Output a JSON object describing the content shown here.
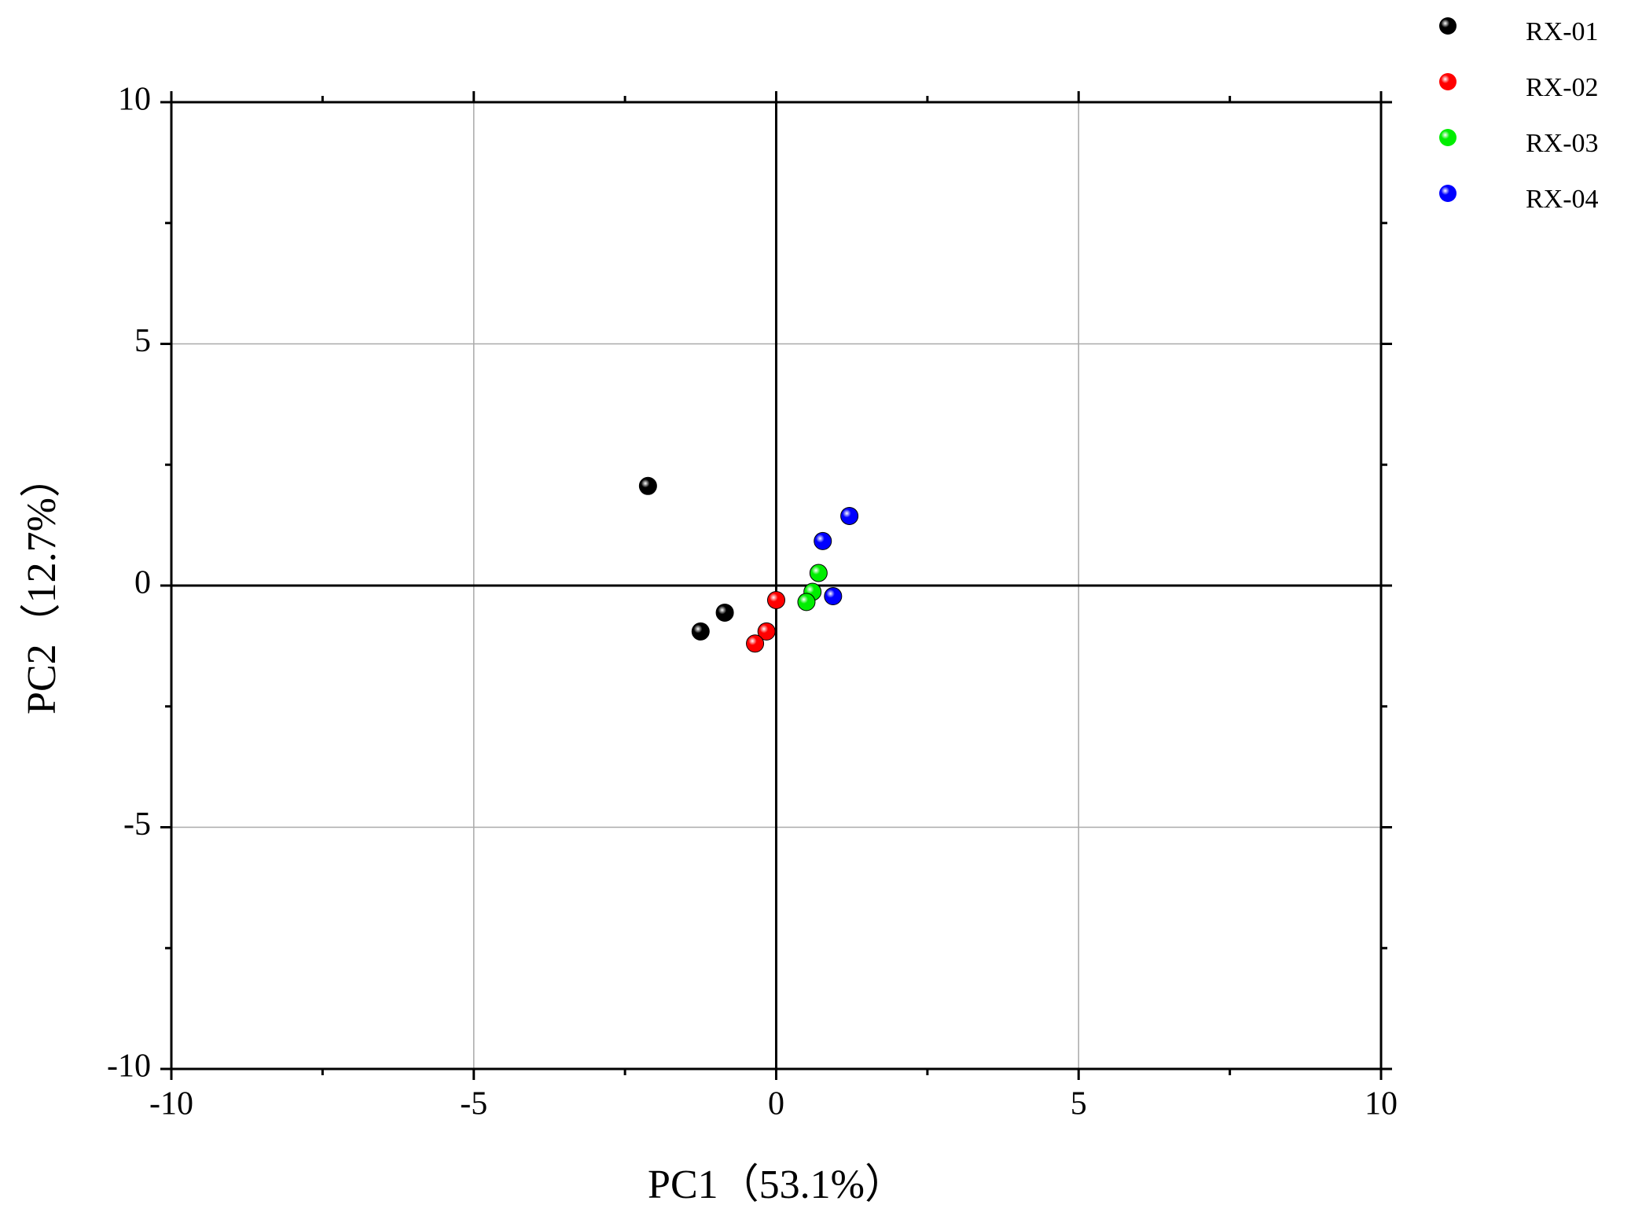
{
  "chart_data": {
    "type": "scatter",
    "x_label": "PC1（53.1%）",
    "y_label": "PC2（12.7%）",
    "xlim": [
      -10,
      10
    ],
    "ylim": [
      -10,
      10
    ],
    "xticks": [
      -10,
      -5,
      0,
      5,
      10
    ],
    "yticks": [
      -10,
      -5,
      0,
      5,
      10
    ],
    "grid": true,
    "zero_lines": true,
    "legend": "top-right",
    "series": [
      {
        "name": "RX-01",
        "color": "#000000",
        "x": [
          -2.12,
          -1.25,
          -0.85
        ],
        "values": [
          2.06,
          -0.95,
          -0.56
        ]
      },
      {
        "name": "RX-02",
        "color": "#ff0000",
        "x": [
          0.0,
          -0.16,
          -0.35
        ],
        "values": [
          -0.3,
          -0.95,
          -1.2
        ]
      },
      {
        "name": "RX-03",
        "color": "#00ee00",
        "x": [
          0.7,
          0.6,
          0.5
        ],
        "values": [
          0.26,
          -0.13,
          -0.34
        ]
      },
      {
        "name": "RX-04",
        "color": "#0000ff",
        "x": [
          1.21,
          0.77,
          0.94
        ],
        "values": [
          1.44,
          0.92,
          -0.22
        ]
      }
    ]
  }
}
